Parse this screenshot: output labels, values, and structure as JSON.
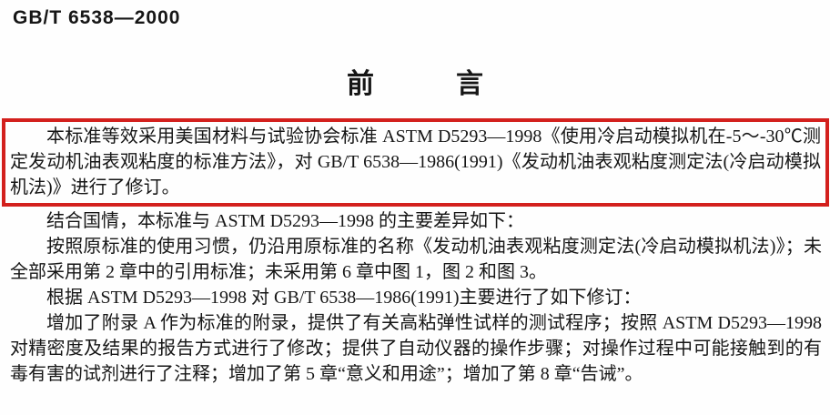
{
  "page": {
    "doc_number": "GB/T 6538—2000",
    "title": "前　　　言",
    "highlight_color": "#d3201d",
    "paragraphs": {
      "highlighted": "本标准等效采用美国材料与试验协会标准 ASTM D5293—1998《使用冷启动模拟机在-5～-30℃测定发动机油表观粘度的标准方法》，对 GB/T 6538—1986(1991)《发动机油表观粘度测定法(冷启动模拟机法)》进行了修订。",
      "body": [
        "结合国情，本标准与 ASTM D5293—1998 的主要差异如下：",
        "按照原标准的使用习惯，仍沿用原标准的名称《发动机油表观粘度测定法(冷启动模拟机法)》；未全部采用第 2 章中的引用标准；未采用第 6 章中图 1，图 2 和图 3。",
        "根据 ASTM D5293—1998 对 GB/T 6538—1986(1991)主要进行了如下修订：",
        "增加了附录 A 作为标准的附录，提供了有关高粘弹性试样的测试程序；按照 ASTM D5293—1998 对精密度及结果的报告方式进行了修改；提供了自动仪器的操作步骤；对操作过程中可能接触到的有毒有害的试剂进行了注释；增加了第 5 章“意义和用途”；增加了第 8 章“告诫”。"
      ]
    }
  }
}
